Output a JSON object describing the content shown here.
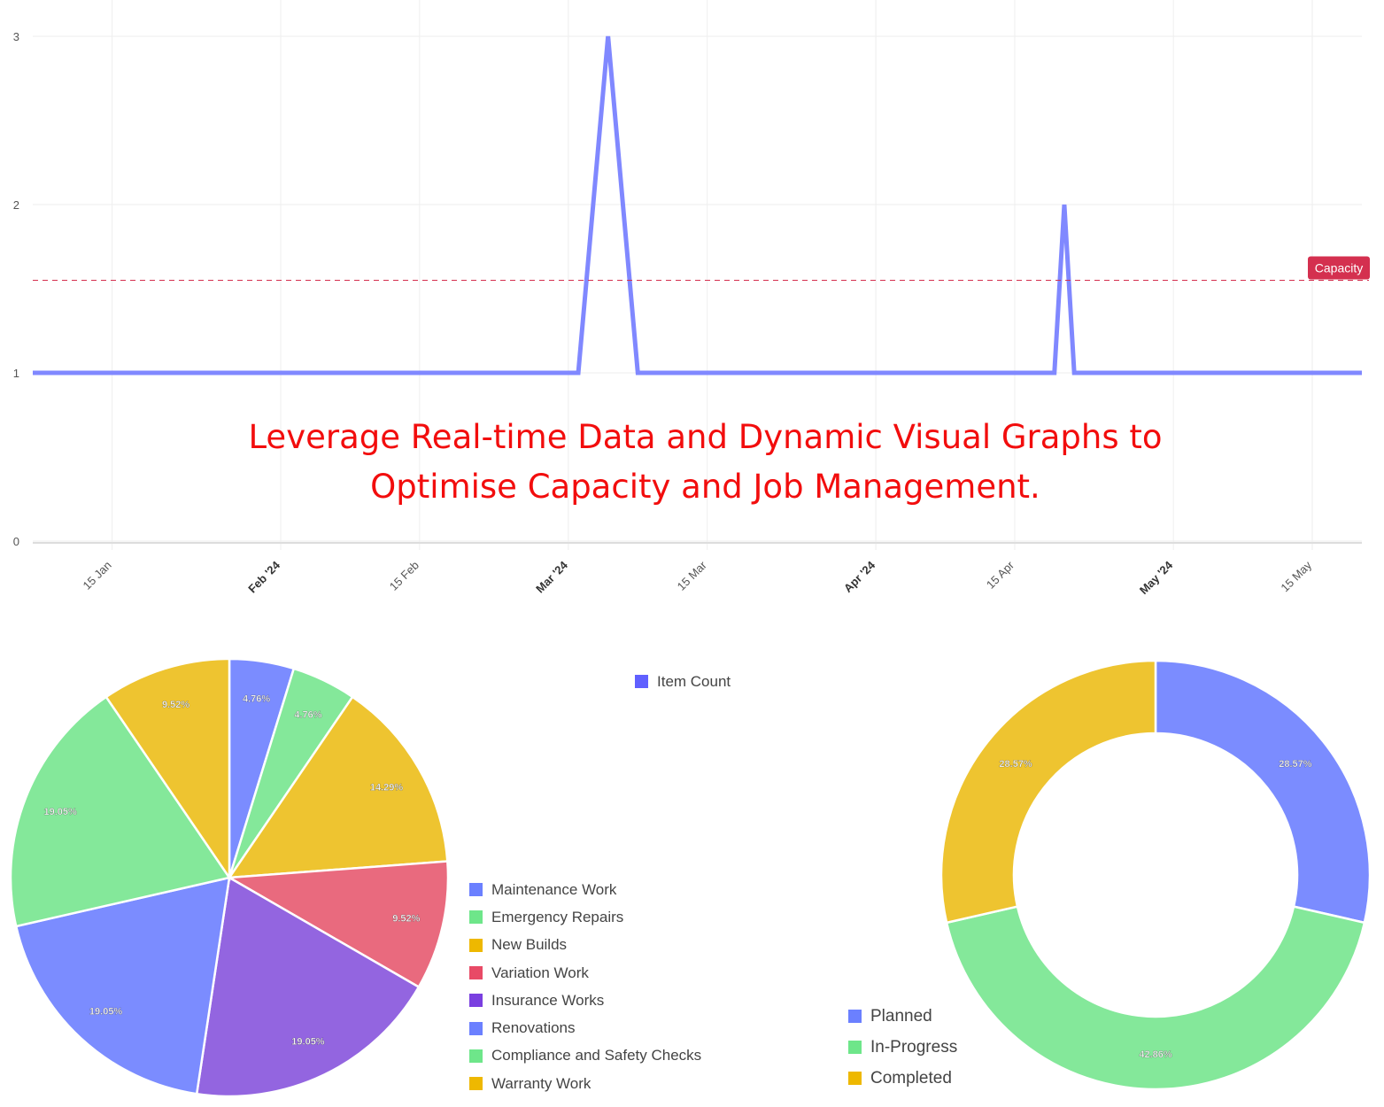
{
  "headline": [
    "Leverage Real-time Data and Dynamic Visual Graphs to",
    "Optimise Capacity and Job Management."
  ],
  "chart_data": [
    {
      "type": "line",
      "xaxis_type": "date",
      "x_range": [
        "2024-01-07",
        "2024-05-20"
      ],
      "ylim": [
        0,
        3
      ],
      "y_ticks": [
        "0",
        "1",
        "2",
        "3"
      ],
      "x_ticks": [
        {
          "date": "2024-01-15",
          "label": "15 Jan"
        },
        {
          "date": "2024-02-01",
          "label": "Feb '24"
        },
        {
          "date": "2024-02-15",
          "label": "15 Feb"
        },
        {
          "date": "2024-03-01",
          "label": "Mar '24"
        },
        {
          "date": "2024-03-15",
          "label": "15 Mar"
        },
        {
          "date": "2024-04-01",
          "label": "Apr '24"
        },
        {
          "date": "2024-04-15",
          "label": "15 Apr"
        },
        {
          "date": "2024-05-01",
          "label": "May '24"
        },
        {
          "date": "2024-05-15",
          "label": "15 May"
        }
      ],
      "grid": true,
      "line_color": "#8088ff",
      "series": [
        {
          "points": [
            [
              "2024-01-07",
              1
            ],
            [
              "2024-03-02",
              1
            ],
            [
              "2024-03-05",
              3
            ],
            [
              "2024-03-08",
              1
            ],
            [
              "2024-04-19",
              1
            ],
            [
              "2024-04-20",
              2
            ],
            [
              "2024-04-21",
              1
            ],
            [
              "2024-05-20",
              1
            ]
          ]
        }
      ],
      "annotations": [
        {
          "type": "horizontal-line",
          "y": 1.55,
          "label": "Capacity",
          "color": "#d4304f",
          "style": "dashed"
        }
      ]
    },
    {
      "type": "pie",
      "legend_placement": "right",
      "top_legend": {
        "label": "Item Count",
        "color": "#6060ff"
      },
      "categories": [
        "Maintenance Work",
        "Emergency Repairs",
        "New Builds",
        "Variation Work",
        "Insurance Works",
        "Renovations",
        "Compliance and Safety Checks",
        "Warranty Work"
      ],
      "values": [
        1,
        1,
        3,
        2,
        4,
        4,
        4,
        2
      ],
      "labels": [
        "4.76%",
        "4.76%",
        "14.29%",
        "9.52%",
        "19.05%",
        "19.05%",
        "19.05%",
        "9.52%"
      ],
      "colors": [
        "#7b8cff",
        "#84e89a",
        "#eec430",
        "#e96a7e",
        "#9365e0",
        "#7b8cff",
        "#84e89a",
        "#eec430"
      ],
      "legend_colors": [
        "#6b80ff",
        "#6ee68a",
        "#eeb800",
        "#e84a66",
        "#7a3fe0",
        "#6b80ff",
        "#6ee68a",
        "#eeb800"
      ]
    },
    {
      "type": "donut",
      "legend_placement": "bottom-left",
      "categories": [
        "Planned",
        "In-Progress",
        "Completed"
      ],
      "values": [
        2,
        3,
        2
      ],
      "labels": [
        "28.57%",
        "42.86%",
        "28.57%"
      ],
      "colors": [
        "#7b8cff",
        "#84e89a",
        "#eec430"
      ],
      "legend_colors": [
        "#6b80ff",
        "#6ee68a",
        "#eeb800"
      ]
    }
  ]
}
